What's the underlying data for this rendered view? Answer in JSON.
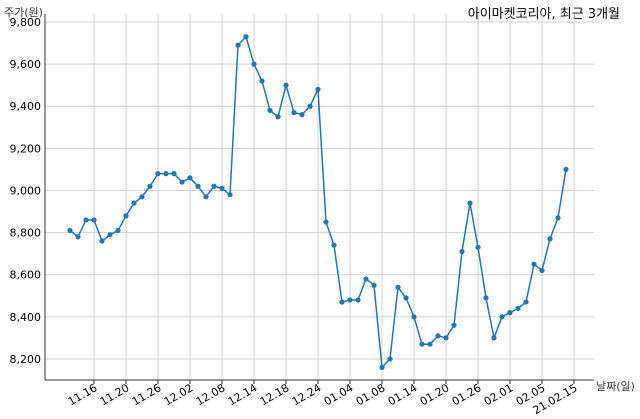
{
  "chart_data": {
    "type": "line",
    "title": "아이마켓코리아, 최근 3개월",
    "ylabel": "주가(원)",
    "xlabel": "날짜(일)",
    "ylim": [
      8100,
      9800
    ],
    "yticks": [
      8200,
      8400,
      8600,
      8800,
      9000,
      9200,
      9400,
      9600,
      9800
    ],
    "ytick_labels": [
      "8,200",
      "8,400",
      "8,600",
      "8,800",
      "9,000",
      "9,200",
      "9,400",
      "9,600",
      "9,800"
    ],
    "xtick_labels": [
      "11.16",
      "11.20",
      "11.26",
      "12.02",
      "12.08",
      "12.14",
      "12.18",
      "12.24",
      "01.04",
      "01.08",
      "01.14",
      "01.20",
      "01.26",
      "02.01",
      "02.05",
      "21.02.15"
    ],
    "xtick_index": [
      3,
      7,
      11,
      15,
      19,
      23,
      27,
      31,
      35,
      39,
      43,
      47,
      51,
      55,
      59,
      63
    ],
    "grid": true,
    "color": "#1f77b4",
    "series": [
      {
        "values": [
          8810,
          8780,
          8860,
          8860,
          8760,
          8790,
          8810,
          8880,
          8940,
          8970,
          9020,
          9080,
          9080,
          9080,
          9040,
          9060,
          9020,
          8970,
          9020,
          9010,
          8980,
          9690,
          9730,
          9600,
          9520,
          9380,
          9350,
          9500,
          9370,
          9360,
          9400,
          9480,
          8850,
          8740,
          8470,
          8480,
          8480,
          8580,
          8550,
          8160,
          8200,
          8540,
          8490,
          8400,
          8270,
          8270,
          8310,
          8300,
          8360,
          8710,
          8940,
          8730,
          8490,
          8300,
          8400,
          8420,
          8440,
          8470,
          8650,
          8620,
          8770,
          8870,
          9100
        ]
      }
    ]
  }
}
